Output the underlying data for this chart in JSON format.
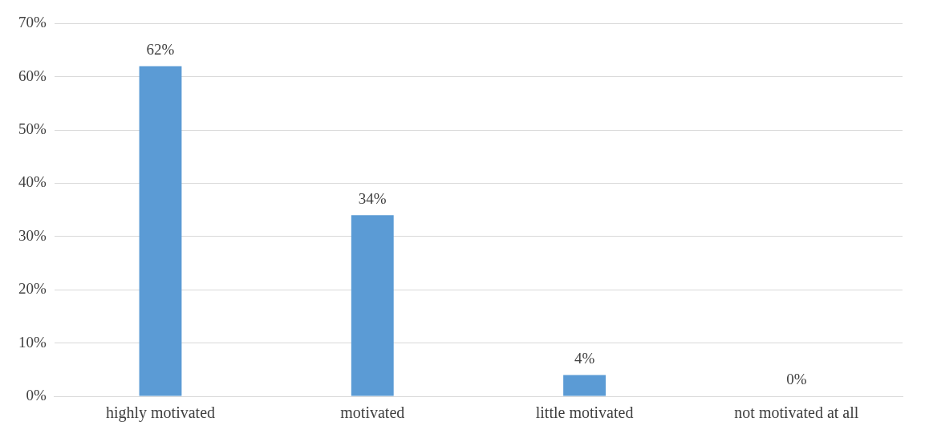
{
  "chart_data": {
    "type": "bar",
    "categories": [
      "highly motivated",
      "motivated",
      "little motivated",
      "not motivated at all"
    ],
    "values": [
      62,
      34,
      4,
      0
    ],
    "color": "#5b9bd5",
    "ylim": [
      0,
      70
    ],
    "yticks": [
      {
        "value": 0,
        "label": "0%"
      },
      {
        "value": 10,
        "label": "10%"
      },
      {
        "value": 20,
        "label": "20%"
      },
      {
        "value": 30,
        "label": "30%"
      },
      {
        "value": 40,
        "label": "40%"
      },
      {
        "value": 50,
        "label": "50%"
      },
      {
        "value": 60,
        "label": "60%"
      },
      {
        "value": 70,
        "label": "70%"
      }
    ],
    "value_labels": [
      "62%",
      "34%",
      "4%",
      "0%"
    ],
    "grid": "y",
    "legend": false
  }
}
